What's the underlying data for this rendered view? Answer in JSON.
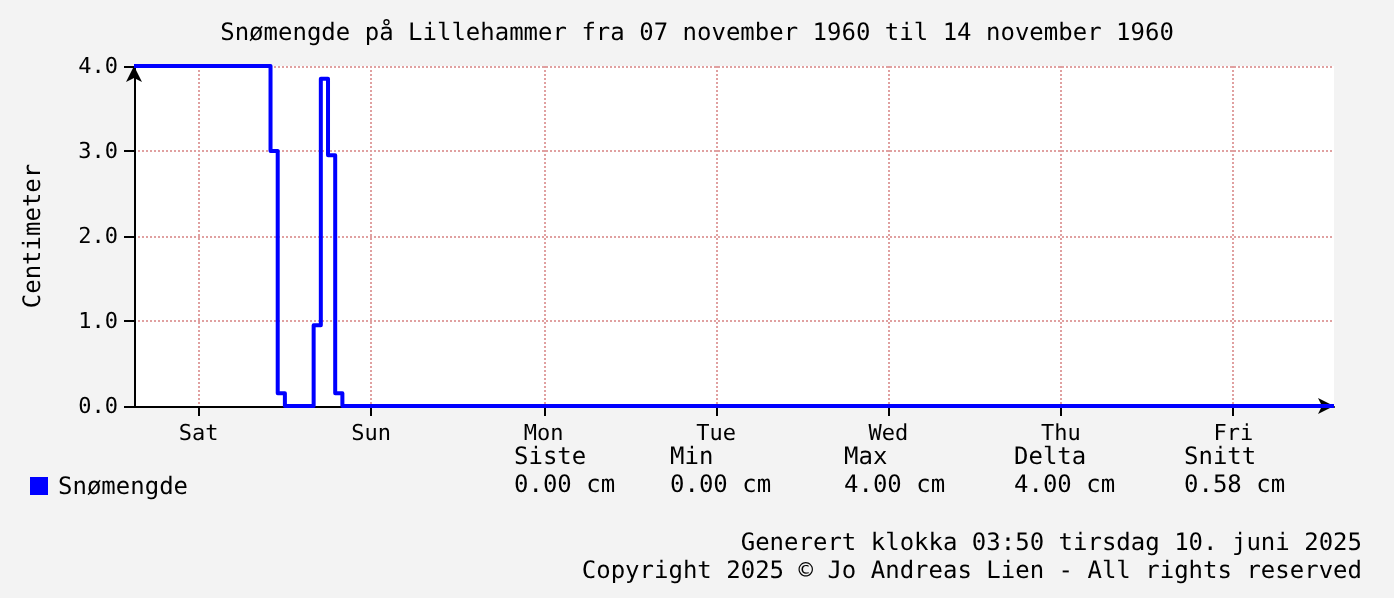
{
  "chart_data": {
    "type": "step",
    "title": "Snømengde på Lillehammer fra 07 november 1960 til 14 november 1960",
    "ylabel": "Centimeter",
    "categories": [
      null,
      null,
      null,
      null,
      null,
      null,
      null,
      null,
      null,
      "Sat",
      null,
      null,
      null,
      null,
      null,
      null,
      null,
      null,
      null,
      null,
      null,
      null,
      null,
      null,
      null,
      null,
      null,
      null,
      null,
      null,
      null,
      null,
      null,
      "Sun",
      null,
      null,
      null,
      null,
      null,
      null,
      null,
      null,
      null,
      null,
      null,
      null,
      null,
      null,
      null,
      null,
      null,
      null,
      null,
      null,
      null,
      null,
      null,
      "Mon",
      null,
      null,
      null,
      null,
      null,
      null,
      null,
      null,
      null,
      null,
      null,
      null,
      null,
      null,
      null,
      null,
      null,
      null,
      null,
      null,
      null,
      null,
      null,
      "Tue",
      null,
      null,
      null,
      null,
      null,
      null,
      null,
      null,
      null,
      null,
      null,
      null,
      null,
      null,
      null,
      null,
      null,
      null,
      null,
      null,
      null,
      null,
      null,
      "Wed",
      null,
      null,
      null,
      null,
      null,
      null,
      null,
      null,
      null,
      null,
      null,
      null,
      null,
      null,
      null,
      null,
      null,
      null,
      null,
      null,
      null,
      null,
      null,
      "Thu",
      null,
      null,
      null,
      null,
      null,
      null,
      null,
      null,
      null,
      null,
      null,
      null,
      null,
      null,
      null,
      null,
      null,
      null,
      null,
      null,
      null,
      null,
      null,
      "Fri",
      null,
      null,
      null,
      null,
      null,
      null,
      null,
      null,
      null,
      null,
      null,
      null,
      null,
      null
    ],
    "series": [
      {
        "name": "Snømengde",
        "color": "#0000ff",
        "values": [
          4.0,
          4.0,
          4.0,
          4.0,
          4.0,
          4.0,
          4.0,
          4.0,
          4.0,
          4.0,
          4.0,
          4.0,
          4.0,
          4.0,
          4.0,
          4.0,
          4.0,
          4.0,
          4.0,
          3.0,
          0.15,
          0,
          0,
          0,
          0,
          0.95,
          3.85,
          2.95,
          0.15,
          0,
          0,
          0,
          0,
          0,
          0,
          0,
          0,
          0,
          0,
          0,
          0,
          0,
          0,
          0,
          0,
          0,
          0,
          0,
          0,
          0,
          0,
          0,
          0,
          0,
          0,
          0,
          0,
          0,
          0,
          0,
          0,
          0,
          0,
          0,
          0,
          0,
          0,
          0,
          0,
          0,
          0,
          0,
          0,
          0,
          0,
          0,
          0,
          0,
          0,
          0,
          0,
          0,
          0,
          0,
          0,
          0,
          0,
          0,
          0,
          0,
          0,
          0,
          0,
          0,
          0,
          0,
          0,
          0,
          0,
          0,
          0,
          0,
          0,
          0,
          0,
          0,
          0,
          0,
          0,
          0,
          0,
          0,
          0,
          0,
          0,
          0,
          0,
          0,
          0,
          0,
          0,
          0,
          0,
          0,
          0,
          0,
          0,
          0,
          0,
          0,
          0,
          0,
          0,
          0,
          0,
          0,
          0,
          0,
          0,
          0,
          0,
          0,
          0,
          0,
          0,
          0,
          0,
          0,
          0,
          0,
          0,
          0,
          0,
          0,
          0,
          0,
          0,
          0,
          0,
          0,
          0,
          0,
          0,
          0,
          0,
          0,
          0,
          0
        ]
      }
    ],
    "ylim": [
      0,
      4
    ],
    "yticks": [
      {
        "value": 0,
        "label": "0.0"
      },
      {
        "value": 1,
        "label": "1.0"
      },
      {
        "value": 2,
        "label": "2.0"
      },
      {
        "value": 3,
        "label": "3.0"
      },
      {
        "value": 4,
        "label": "4.0"
      }
    ],
    "grid": true,
    "legend": "bottom left",
    "annotations": [
      "Siste",
      "Min",
      "Max",
      "Delta",
      "Snitt",
      "0.00 cm",
      "0.00 cm",
      "4.00 cm",
      "4.00 cm",
      "0.58 cm",
      "Generert klokka 03:50 tirsdag 10. juni 2025",
      "Copyright 2025 © Jo Andreas Lien - All rights reserved"
    ]
  }
}
